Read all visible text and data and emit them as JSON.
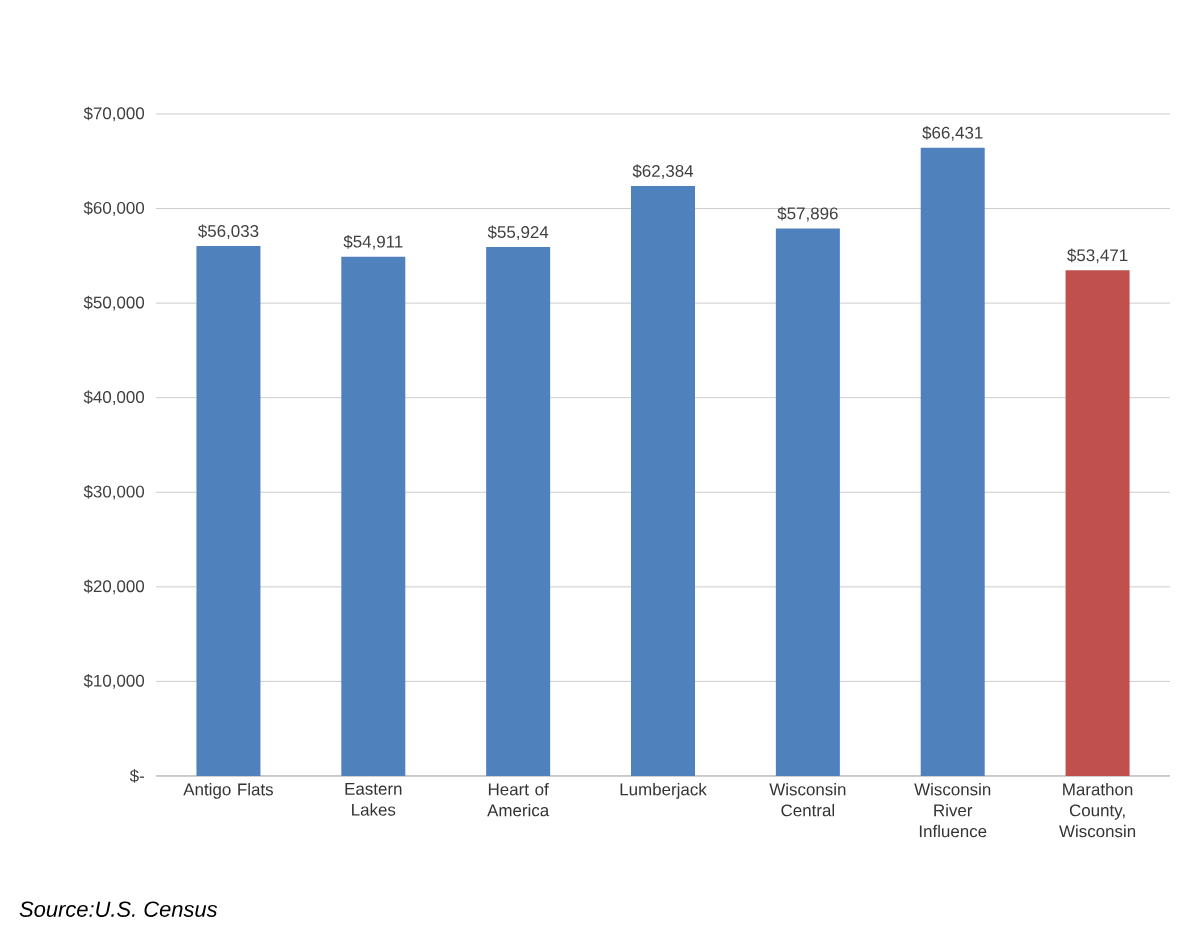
{
  "chart_data": {
    "type": "bar",
    "categories": [
      "Antigo Flats",
      "Eastern Lakes",
      "Heart of America",
      "Lumberjack",
      "Wisconsin Central",
      "Wisconsin River Influence",
      "Marathon County, Wisconsin"
    ],
    "values": [
      56033,
      54911,
      55924,
      62384,
      57896,
      66431,
      53471
    ],
    "value_labels": [
      "$56,033",
      "$54,911",
      "$55,924",
      "$62,384",
      "$57,896",
      "$66,431",
      "$53,471"
    ],
    "colors": [
      "#4f81bd",
      "#4f81bd",
      "#4f81bd",
      "#4f81bd",
      "#4f81bd",
      "#4f81bd",
      "#c0504d"
    ],
    "ylim": [
      0,
      70000
    ],
    "yticks": [
      {
        "value": 0,
        "label": "$-"
      },
      {
        "value": 10000,
        "label": "$10,000"
      },
      {
        "value": 20000,
        "label": "$20,000"
      },
      {
        "value": 30000,
        "label": "$30,000"
      },
      {
        "value": 40000,
        "label": "$40,000"
      },
      {
        "value": 50000,
        "label": "$50,000"
      },
      {
        "value": 60000,
        "label": "$60,000"
      },
      {
        "value": 70000,
        "label": "$70,000"
      }
    ],
    "grid": "y",
    "annotations": [
      "Source:U.S. Census"
    ]
  }
}
